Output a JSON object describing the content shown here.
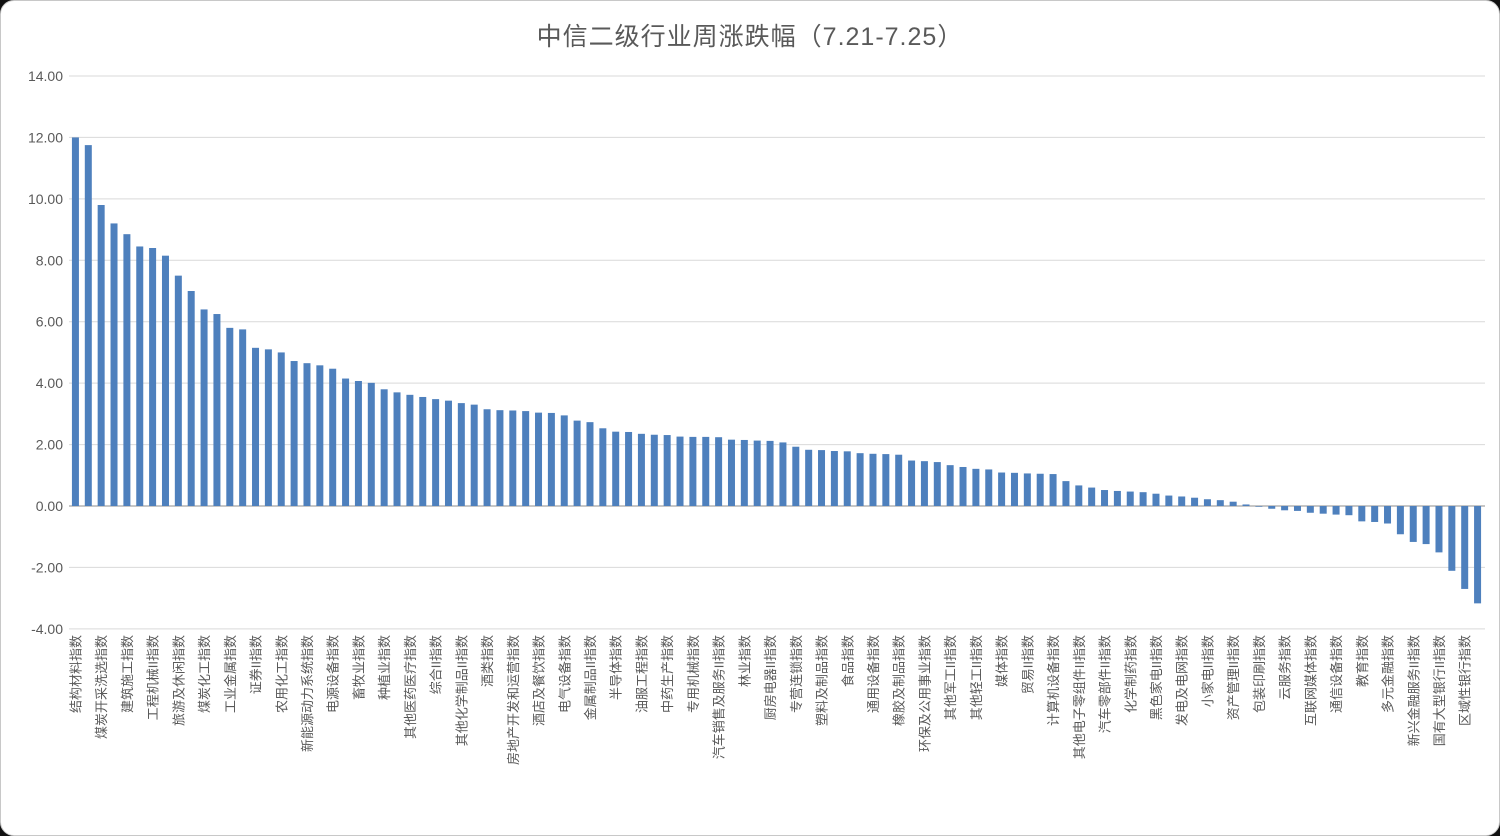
{
  "title": "中信二级行业周涨跌幅（7.21-7.25）",
  "chart_data": {
    "type": "bar",
    "title": "中信二级行业周涨跌幅（7.21-7.25）",
    "xlabel": "",
    "ylabel": "",
    "ylim": [
      -4,
      14
    ],
    "y_tick_step": 2,
    "y_tick_labels": [
      "14.00",
      "12.00",
      "10.00",
      "8.00",
      "6.00",
      "4.00",
      "2.00",
      "0.00",
      "-2.00",
      "-4.00"
    ],
    "grid": "horizontal",
    "legend_position": "none",
    "x_label_interval": 2,
    "bar_color": "#4E80BD",
    "gridline_color": "#d9d9d9",
    "zero_line_color": "#c6c6c6",
    "axis_text_color": "#595959",
    "categories": [
      "结构材料指数",
      "煤炭开采洗选指数",
      "建筑施工指数",
      "工程机械II指数",
      "旅游及休闲指数",
      "煤炭化工指数",
      "工业金属指数",
      "证券II指数",
      "农用化工指数",
      "新能源动力系统指数",
      "电源设备指数",
      "畜牧业指数",
      "种植业指数",
      "其他医药医疗指数",
      "综合II指数",
      "其他化学制品II指数",
      "酒类指数",
      "房地产开发和运营指数",
      "酒店及餐饮指数",
      "电气设备指数",
      "金属制品II指数",
      "半导体指数",
      "油服工程指数",
      "中药生产指数",
      "专用机械指数",
      "汽车销售及服务II指数",
      "林业指数",
      "厨房电器II指数",
      "专营连锁指数",
      "塑料及制品指数",
      "食品指数",
      "通用设备指数",
      "橡胶及制品指数",
      "环保及公用事业指数",
      "其他军工II指数",
      "其他轻工II指数",
      "媒体指数",
      "贸易II指数",
      "计算机设备指数",
      "其他电子零组件II指数",
      "汽车零部件II指数",
      "化学制药指数",
      "黑色家电II指数",
      "发电及电网指数",
      "小家电II指数",
      "资产管理II指数",
      "包装印刷指数",
      "云服务指数",
      "互联网媒体指数",
      "通信设备指数",
      "教育指数",
      "多元金融指数",
      "新兴金融服务II指数",
      "国有大型银行II指数",
      "区域性银行指数"
    ],
    "values": [
      12.0,
      11.75,
      9.8,
      9.2,
      8.85,
      8.45,
      8.4,
      8.15,
      7.5,
      7.0,
      6.4,
      6.25,
      5.8,
      5.75,
      5.15,
      5.1,
      5.0,
      4.72,
      4.65,
      4.58,
      4.47,
      4.15,
      4.07,
      4.01,
      3.8,
      3.7,
      3.62,
      3.55,
      3.48,
      3.43,
      3.35,
      3.3,
      3.15,
      3.12,
      3.11,
      3.09,
      3.04,
      3.03,
      2.95,
      2.78,
      2.73,
      2.53,
      2.42,
      2.41,
      2.35,
      2.32,
      2.31,
      2.26,
      2.25,
      2.25,
      2.24,
      2.16,
      2.15,
      2.13,
      2.12,
      2.07,
      1.93,
      1.83,
      1.82,
      1.79,
      1.78,
      1.72,
      1.7,
      1.69,
      1.67,
      1.48,
      1.46,
      1.43,
      1.33,
      1.27,
      1.21,
      1.19,
      1.09,
      1.08,
      1.06,
      1.05,
      1.04,
      0.81,
      0.67,
      0.6,
      0.52,
      0.49,
      0.47,
      0.45,
      0.4,
      0.34,
      0.31,
      0.27,
      0.22,
      0.19,
      0.14,
      0.05,
      -0.02,
      -0.09,
      -0.14,
      -0.16,
      -0.22,
      -0.25,
      -0.28,
      -0.3,
      -0.5,
      -0.52,
      -0.57,
      -0.92,
      -1.17,
      -1.24,
      -1.51,
      -2.11,
      -2.7,
      -3.17
    ]
  }
}
